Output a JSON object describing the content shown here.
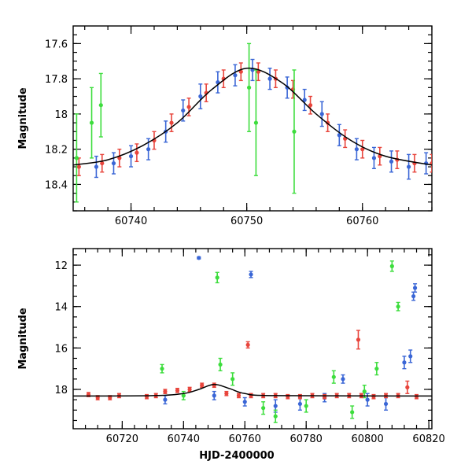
{
  "chart_data": [
    {
      "type": "scatter",
      "title": "",
      "xlabel": "",
      "ylabel": "Magnitude",
      "xlim": [
        60735,
        60766
      ],
      "ylim": [
        18.55,
        17.5
      ],
      "y_inverted": true,
      "x_major_ticks": [
        60740,
        60750,
        60760
      ],
      "x_tick_labels": [
        "60740",
        "60750",
        "60760"
      ],
      "y_major_ticks": [
        17.6,
        17.8,
        18.0,
        18.2,
        18.4
      ],
      "y_tick_labels": [
        "17.6",
        "17.8",
        "18",
        "18.2",
        "18.4"
      ],
      "model_curve": {
        "x": [
          60735,
          60738,
          60741,
          60744,
          60747,
          60750,
          60753,
          60756,
          60759,
          60762,
          60766
        ],
        "y": [
          18.29,
          18.26,
          18.18,
          18.05,
          17.86,
          17.74,
          17.82,
          18.0,
          18.15,
          18.24,
          18.29
        ]
      },
      "series": [
        {
          "color": "#3a66d6",
          "x": [
            60737,
            60738.5,
            60740,
            60741.5,
            60743,
            60744.5,
            60746,
            60747.5,
            60749,
            60750.5,
            60752,
            60753.5,
            60755,
            60756.5,
            60758,
            60759.5,
            60761,
            60762.5,
            60764,
            60765.5
          ],
          "y": [
            18.3,
            18.28,
            18.24,
            18.2,
            18.1,
            17.98,
            17.9,
            17.82,
            17.78,
            17.75,
            17.8,
            17.85,
            17.92,
            18.0,
            18.12,
            18.2,
            18.25,
            18.27,
            18.3,
            18.28
          ],
          "err": [
            0.06,
            0.06,
            0.06,
            0.06,
            0.06,
            0.06,
            0.07,
            0.06,
            0.06,
            0.06,
            0.06,
            0.06,
            0.06,
            0.07,
            0.06,
            0.06,
            0.06,
            0.06,
            0.07,
            0.06
          ]
        },
        {
          "color": "#e8453c",
          "x": [
            60735.5,
            60737.5,
            60739,
            60740.5,
            60742,
            60743.5,
            60745,
            60746.5,
            60748,
            60749.5,
            60751,
            60752.5,
            60754,
            60755.5,
            60757,
            60758.5,
            60760,
            60761.5,
            60763,
            60764.5,
            60766
          ],
          "y": [
            18.3,
            18.28,
            18.25,
            18.22,
            18.15,
            18.05,
            17.96,
            17.88,
            17.8,
            17.76,
            17.76,
            17.8,
            17.86,
            17.95,
            18.05,
            18.14,
            18.2,
            18.24,
            18.26,
            18.28,
            18.28
          ],
          "err": [
            0.05,
            0.05,
            0.05,
            0.05,
            0.05,
            0.05,
            0.05,
            0.05,
            0.05,
            0.05,
            0.05,
            0.05,
            0.05,
            0.05,
            0.05,
            0.05,
            0.05,
            0.05,
            0.05,
            0.05,
            0.05
          ]
        },
        {
          "color": "#3ddd3d",
          "x": [
            60735.3,
            60736.6,
            60737.4,
            60750.2,
            60750.8,
            60754.1
          ],
          "y": [
            18.25,
            18.05,
            17.95,
            17.85,
            18.05,
            18.1
          ],
          "err": [
            0.25,
            0.2,
            0.18,
            0.25,
            0.3,
            0.35
          ]
        }
      ]
    },
    {
      "type": "scatter",
      "title": "",
      "xlabel": "HJD-2400000",
      "ylabel": "Magnitude",
      "xlim": [
        60704,
        60821
      ],
      "ylim": [
        19.9,
        11.2
      ],
      "y_inverted": true,
      "x_major_ticks": [
        60720,
        60740,
        60760,
        60780,
        60800,
        60820
      ],
      "x_tick_labels": [
        "60720",
        "60740",
        "60760",
        "60780",
        "60800",
        "60820"
      ],
      "y_major_ticks": [
        12,
        14,
        16,
        18
      ],
      "y_tick_labels": [
        "12",
        "14",
        "16",
        "18"
      ],
      "model_curve": {
        "x": [
          60704,
          60730,
          60740,
          60745,
          60750,
          60755,
          60760,
          60770,
          60821
        ],
        "y": [
          18.32,
          18.3,
          18.2,
          18.0,
          17.76,
          17.96,
          18.2,
          18.3,
          18.32
        ]
      },
      "series": [
        {
          "color": "#3a66d6",
          "x": [
            60745,
            60762,
            60734,
            60750,
            60760,
            60770,
            60778,
            60786,
            60792,
            60800,
            60806,
            60812,
            60814,
            60815,
            60815.5
          ],
          "y": [
            11.65,
            12.45,
            18.5,
            18.3,
            18.6,
            18.8,
            18.7,
            18.4,
            17.5,
            18.5,
            18.7,
            16.7,
            16.4,
            13.5,
            13.1
          ],
          "err": [
            0.05,
            0.15,
            0.2,
            0.2,
            0.2,
            0.3,
            0.3,
            0.2,
            0.2,
            0.3,
            0.3,
            0.3,
            0.3,
            0.2,
            0.2
          ]
        },
        {
          "color": "#3ddd3d",
          "x": [
            60751,
            60808,
            60810,
            60733,
            60740,
            60752,
            60756,
            60766,
            60770,
            60780,
            60789,
            60795,
            60799,
            60803
          ],
          "y": [
            12.6,
            12.05,
            14.0,
            17.0,
            18.3,
            16.8,
            17.5,
            18.9,
            19.3,
            18.8,
            17.4,
            19.1,
            18.1,
            17.0
          ],
          "err": [
            0.25,
            0.25,
            0.2,
            0.2,
            0.2,
            0.3,
            0.3,
            0.3,
            0.3,
            0.3,
            0.3,
            0.3,
            0.3,
            0.3
          ]
        },
        {
          "color": "#e8453c",
          "x": [
            60709,
            60712,
            60716,
            60719,
            60728,
            60731,
            60734,
            60738,
            60742,
            60746,
            60750,
            60754,
            60758,
            60761,
            60762,
            60766,
            60770,
            60774,
            60778,
            60782,
            60786,
            60790,
            60794,
            60797,
            60798,
            60802,
            60806,
            60810,
            60813,
            60816
          ],
          "y": [
            18.25,
            18.4,
            18.4,
            18.3,
            18.35,
            18.3,
            18.1,
            18.05,
            18.0,
            17.8,
            17.8,
            18.2,
            18.3,
            15.85,
            18.3,
            18.3,
            18.3,
            18.35,
            18.35,
            18.3,
            18.35,
            18.3,
            18.3,
            15.6,
            18.3,
            18.35,
            18.3,
            18.3,
            17.9,
            18.35
          ],
          "err": [
            0.1,
            0.1,
            0.1,
            0.1,
            0.1,
            0.1,
            0.1,
            0.1,
            0.1,
            0.1,
            0.1,
            0.1,
            0.1,
            0.15,
            0.1,
            0.1,
            0.1,
            0.1,
            0.1,
            0.1,
            0.1,
            0.1,
            0.1,
            0.45,
            0.1,
            0.1,
            0.1,
            0.1,
            0.3,
            0.1
          ]
        }
      ]
    }
  ]
}
